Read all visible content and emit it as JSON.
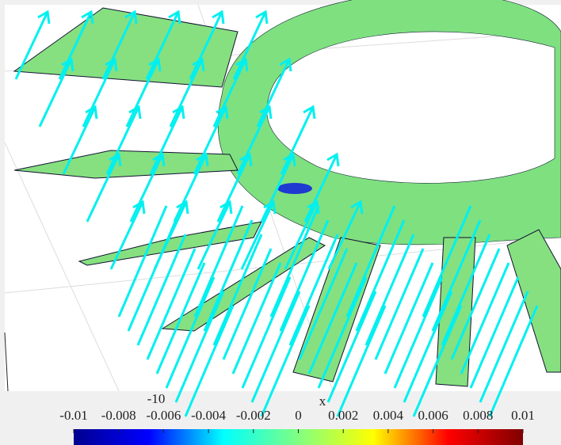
{
  "chart_data": {
    "type": "colorbar",
    "xlabel": "x",
    "annotation": "-10",
    "colormap": "jet",
    "clim": [
      -0.01,
      0.01
    ],
    "cticks": [
      -0.01,
      -0.008,
      -0.006,
      -0.004,
      -0.002,
      0,
      0.002,
      0.004,
      0.006,
      0.008,
      0.01
    ]
  }
}
